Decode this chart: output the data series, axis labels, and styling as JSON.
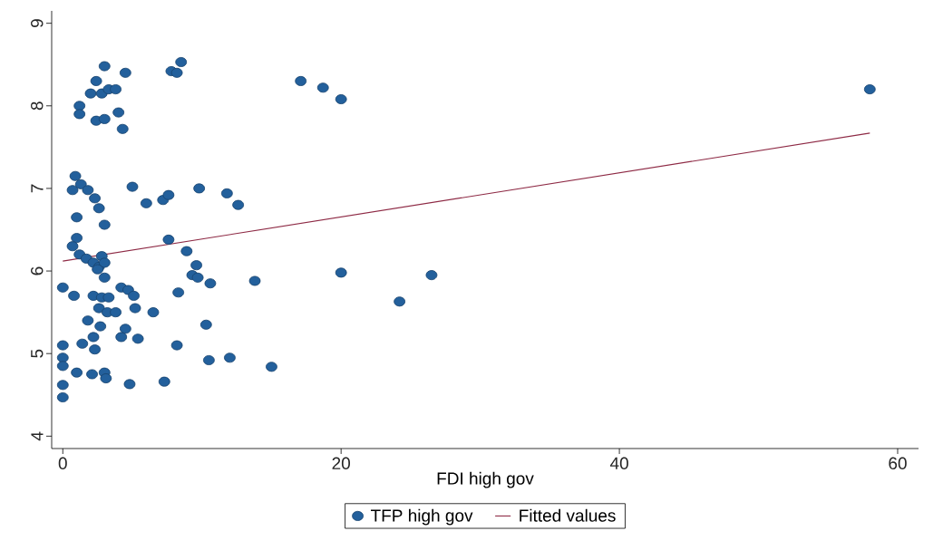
{
  "chart_data": {
    "type": "scatter",
    "xlabel": "FDI high gov",
    "xlim": [
      -0.8,
      61.5
    ],
    "ylim": [
      3.85,
      9.15
    ],
    "xticks": [
      0,
      20,
      40,
      60
    ],
    "yticks": [
      4,
      5,
      6,
      7,
      8,
      9
    ],
    "legend": "bottom",
    "series": [
      {
        "name": "TFP high gov",
        "marker": "circle",
        "color": "#23609c",
        "x": [
          1.2,
          1.2,
          3.0,
          4.5,
          2.4,
          2.0,
          2.8,
          3.3,
          3.8,
          2.4,
          3.0,
          4.0,
          4.3,
          7.8,
          8.2,
          8.5,
          17.1,
          18.7,
          20.0,
          58,
          0.9,
          1.3,
          0.7,
          1.8,
          2.3,
          2.6,
          1.0,
          3.0,
          5.0,
          6.0,
          7.2,
          7.6,
          9.8,
          11.8,
          12.6,
          1.0,
          0.7,
          1.2,
          1.7,
          2.2,
          2.6,
          2.8,
          3.0,
          2.5,
          3.0,
          7.6,
          8.9,
          9.6,
          9.3,
          9.7,
          10.6,
          13.8,
          20.0,
          26.5,
          24.2,
          0,
          0.8,
          2.2,
          2.8,
          3.3,
          2.6,
          3.2,
          3.8,
          4.2,
          4.7,
          5.1,
          5.2,
          6.5,
          8.3,
          1.8,
          2.7,
          4.5,
          4.2,
          5.4,
          10.3,
          2.2,
          1.4,
          2.3,
          8.2,
          0,
          0,
          0,
          0,
          0,
          1.0,
          2.1,
          3.0,
          3.1,
          4.8,
          7.3,
          10.5,
          12.0,
          15.0
        ],
        "values": [
          8.0,
          7.9,
          8.48,
          8.4,
          8.3,
          8.15,
          8.15,
          8.2,
          8.2,
          7.82,
          7.84,
          7.92,
          7.72,
          8.42,
          8.4,
          8.53,
          8.3,
          8.22,
          8.08,
          8.2,
          7.15,
          7.05,
          6.98,
          6.98,
          6.88,
          6.76,
          6.65,
          6.56,
          7.02,
          6.82,
          6.86,
          6.92,
          7.0,
          6.94,
          6.8,
          6.4,
          6.3,
          6.2,
          6.15,
          6.1,
          6.05,
          6.18,
          6.1,
          6.02,
          5.92,
          6.38,
          6.24,
          6.07,
          5.95,
          5.92,
          5.85,
          5.88,
          5.98,
          5.95,
          5.63,
          5.8,
          5.7,
          5.7,
          5.68,
          5.68,
          5.55,
          5.5,
          5.5,
          5.8,
          5.77,
          5.7,
          5.55,
          5.5,
          5.74,
          5.4,
          5.33,
          5.3,
          5.2,
          5.18,
          5.35,
          5.2,
          5.12,
          5.05,
          5.1,
          5.1,
          4.95,
          4.85,
          4.62,
          4.47,
          4.77,
          4.75,
          4.77,
          4.7,
          4.63,
          4.66,
          4.92,
          4.95,
          4.84
        ]
      },
      {
        "name": "Fitted values",
        "type": "line",
        "marker": "none",
        "color": "#8e2a45",
        "x": [
          0,
          58
        ],
        "values": [
          6.12,
          7.67
        ]
      }
    ]
  }
}
